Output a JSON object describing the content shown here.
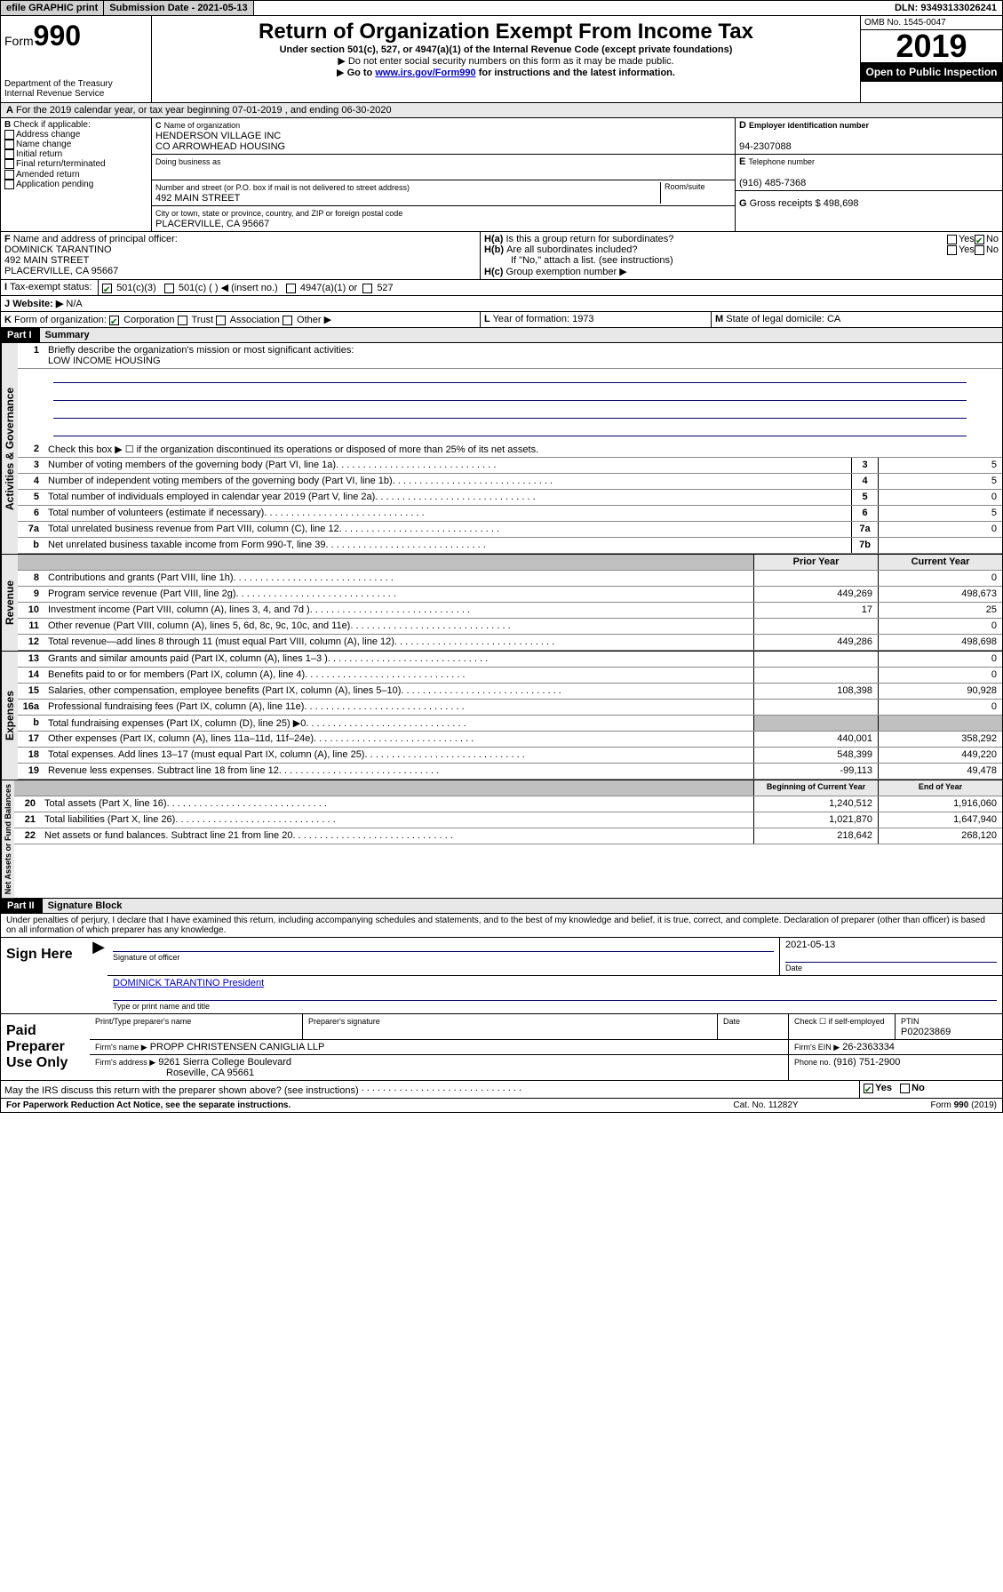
{
  "topbar": {
    "efile": "efile GRAPHIC print",
    "submission": "Submission Date - 2021-05-13",
    "dln": "DLN: 93493133026241"
  },
  "header": {
    "form_prefix": "Form",
    "form_num": "990",
    "dept": "Department of the Treasury\nInternal Revenue Service",
    "title": "Return of Organization Exempt From Income Tax",
    "subtitle": "Under section 501(c), 527, or 4947(a)(1) of the Internal Revenue Code (except private foundations)",
    "note1": "Do not enter social security numbers on this form as it may be made public.",
    "note2_pre": "Go to ",
    "note2_link": "www.irs.gov/Form990",
    "note2_post": " for instructions and the latest information.",
    "omb": "OMB No. 1545-0047",
    "year": "2019",
    "open": "Open to Public Inspection"
  },
  "sectionA": "For the 2019 calendar year, or tax year beginning 07-01-2019 , and ending 06-30-2020",
  "checkB": {
    "label": "Check if applicable:",
    "items": [
      "Address change",
      "Name change",
      "Initial return",
      "Final return/terminated",
      "Amended return",
      "Application pending"
    ]
  },
  "boxC": {
    "label": "Name of organization",
    "line1": "HENDERSON VILLAGE INC",
    "line2": "CO ARROWHEAD HOUSING",
    "dba_label": "Doing business as",
    "addr_label": "Number and street (or P.O. box if mail is not delivered to street address)",
    "room_label": "Room/suite",
    "addr": "492 MAIN STREET",
    "city_label": "City or town, state or province, country, and ZIP or foreign postal code",
    "city": "PLACERVILLE, CA  95667"
  },
  "boxD": {
    "label": "Employer identification number",
    "val": "94-2307088"
  },
  "boxE": {
    "label": "Telephone number",
    "val": "(916) 485-7368"
  },
  "boxG": {
    "label": "Gross receipts $",
    "val": "498,698"
  },
  "boxF": {
    "label": "Name and address of principal officer:",
    "line1": "DOMINICK TARANTINO",
    "line2": "492 MAIN STREET",
    "line3": "PLACERVILLE, CA  95667"
  },
  "boxH": {
    "a": "Is this a group return for subordinates?",
    "b": "Are all subordinates included?",
    "b_note": "If \"No,\" attach a list. (see instructions)",
    "c": "Group exemption number ▶",
    "yes": "Yes",
    "no": "No"
  },
  "boxI": {
    "label": "Tax-exempt status:",
    "opt1": "501(c)(3)",
    "opt2": "501(c) (   ) ◀ (insert no.)",
    "opt3": "4947(a)(1) or",
    "opt4": "527"
  },
  "boxJ": {
    "label": "Website: ▶",
    "val": "N/A"
  },
  "boxK": {
    "label": "Form of organization:",
    "opts": [
      "Corporation",
      "Trust",
      "Association",
      "Other ▶"
    ]
  },
  "boxL": {
    "label": "Year of formation:",
    "val": "1973"
  },
  "boxM": {
    "label": "State of legal domicile:",
    "val": "CA"
  },
  "part1": {
    "header": "Part I",
    "title": "Summary",
    "l1": "Briefly describe the organization's mission or most significant activities:",
    "l1val": "LOW INCOME HOUSING",
    "l2": "Check this box ▶ ☐ if the organization discontinued its operations or disposed of more than 25% of its net assets.",
    "lines_gov": [
      {
        "n": "3",
        "t": "Number of voting members of the governing body (Part VI, line 1a)",
        "b": "3",
        "v": "5"
      },
      {
        "n": "4",
        "t": "Number of independent voting members of the governing body (Part VI, line 1b)",
        "b": "4",
        "v": "5"
      },
      {
        "n": "5",
        "t": "Total number of individuals employed in calendar year 2019 (Part V, line 2a)",
        "b": "5",
        "v": "0"
      },
      {
        "n": "6",
        "t": "Total number of volunteers (estimate if necessary)",
        "b": "6",
        "v": "5"
      },
      {
        "n": "7a",
        "t": "Total unrelated business revenue from Part VIII, column (C), line 12",
        "b": "7a",
        "v": "0"
      },
      {
        "n": "b",
        "t": "Net unrelated business taxable income from Form 990-T, line 39",
        "b": "7b",
        "v": ""
      }
    ],
    "col_prior": "Prior Year",
    "col_current": "Current Year",
    "lines_rev": [
      {
        "n": "8",
        "t": "Contributions and grants (Part VIII, line 1h)",
        "p": "",
        "c": "0"
      },
      {
        "n": "9",
        "t": "Program service revenue (Part VIII, line 2g)",
        "p": "449,269",
        "c": "498,673"
      },
      {
        "n": "10",
        "t": "Investment income (Part VIII, column (A), lines 3, 4, and 7d )",
        "p": "17",
        "c": "25"
      },
      {
        "n": "11",
        "t": "Other revenue (Part VIII, column (A), lines 5, 6d, 8c, 9c, 10c, and 11e)",
        "p": "",
        "c": "0"
      },
      {
        "n": "12",
        "t": "Total revenue—add lines 8 through 11 (must equal Part VIII, column (A), line 12)",
        "p": "449,286",
        "c": "498,698"
      }
    ],
    "lines_exp": [
      {
        "n": "13",
        "t": "Grants and similar amounts paid (Part IX, column (A), lines 1–3 )",
        "p": "",
        "c": "0"
      },
      {
        "n": "14",
        "t": "Benefits paid to or for members (Part IX, column (A), line 4)",
        "p": "",
        "c": "0"
      },
      {
        "n": "15",
        "t": "Salaries, other compensation, employee benefits (Part IX, column (A), lines 5–10)",
        "p": "108,398",
        "c": "90,928"
      },
      {
        "n": "16a",
        "t": "Professional fundraising fees (Part IX, column (A), line 11e)",
        "p": "",
        "c": "0"
      },
      {
        "n": "b",
        "t": "Total fundraising expenses (Part IX, column (D), line 25) ▶0",
        "p": "GREY",
        "c": "GREY"
      },
      {
        "n": "17",
        "t": "Other expenses (Part IX, column (A), lines 11a–11d, 11f–24e)",
        "p": "440,001",
        "c": "358,292"
      },
      {
        "n": "18",
        "t": "Total expenses. Add lines 13–17 (must equal Part IX, column (A), line 25)",
        "p": "548,399",
        "c": "449,220"
      },
      {
        "n": "19",
        "t": "Revenue less expenses. Subtract line 18 from line 12",
        "p": "-99,113",
        "c": "49,478"
      }
    ],
    "col_begin": "Beginning of Current Year",
    "col_end": "End of Year",
    "lines_net": [
      {
        "n": "20",
        "t": "Total assets (Part X, line 16)",
        "p": "1,240,512",
        "c": "1,916,060"
      },
      {
        "n": "21",
        "t": "Total liabilities (Part X, line 26)",
        "p": "1,021,870",
        "c": "1,647,940"
      },
      {
        "n": "22",
        "t": "Net assets or fund balances. Subtract line 21 from line 20",
        "p": "218,642",
        "c": "268,120"
      }
    ],
    "vert_gov": "Activities & Governance",
    "vert_rev": "Revenue",
    "vert_exp": "Expenses",
    "vert_net": "Net Assets or Fund Balances"
  },
  "part2": {
    "header": "Part II",
    "title": "Signature Block",
    "declaration": "Under penalties of perjury, I declare that I have examined this return, including accompanying schedules and statements, and to the best of my knowledge and belief, it is true, correct, and complete. Declaration of preparer (other than officer) is based on all information of which preparer has any knowledge.",
    "sign_here": "Sign Here",
    "sig_officer": "Signature of officer",
    "sig_date": "2021-05-13",
    "date_label": "Date",
    "officer_name": "DOMINICK TARANTINO  President",
    "type_name": "Type or print name and title",
    "paid": "Paid Preparer Use Only",
    "prep_name_label": "Print/Type preparer's name",
    "prep_sig_label": "Preparer's signature",
    "prep_date_label": "Date",
    "check_if": "Check ☐ if self-employed",
    "ptin_label": "PTIN",
    "ptin": "P02023869",
    "firm_name_label": "Firm's name    ▶",
    "firm_name": "PROPP CHRISTENSEN CANIGLIA LLP",
    "firm_ein_label": "Firm's EIN ▶",
    "firm_ein": "26-2363334",
    "firm_addr_label": "Firm's address ▶",
    "firm_addr1": "9261 Sierra College Boulevard",
    "firm_addr2": "Roseville, CA  95661",
    "phone_label": "Phone no.",
    "phone": "(916) 751-2900",
    "discuss": "May the IRS discuss this return with the preparer shown above? (see instructions)"
  },
  "footer": {
    "left": "For Paperwork Reduction Act Notice, see the separate instructions.",
    "mid": "Cat. No. 11282Y",
    "right": "Form 990 (2019)"
  }
}
